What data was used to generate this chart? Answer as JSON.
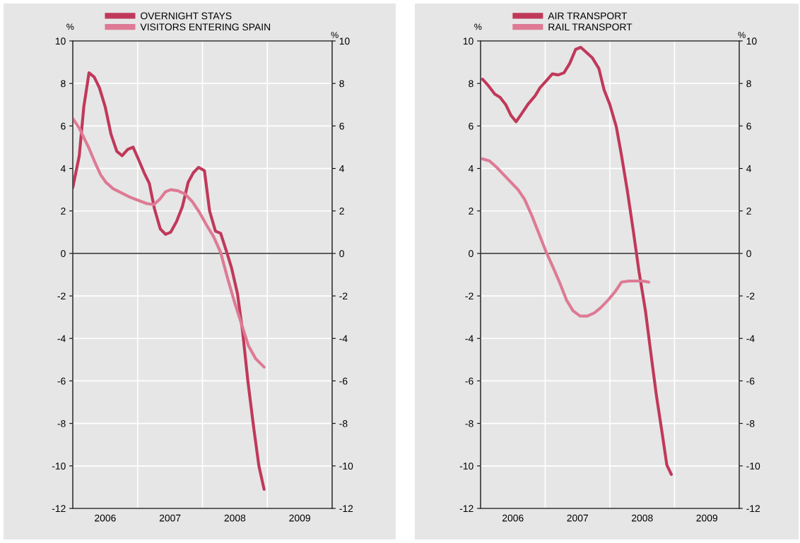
{
  "chart_data": [
    {
      "type": "line",
      "xlim": [
        2006,
        2010
      ],
      "xticks": [
        {
          "value": 2006.5,
          "label": "2006"
        },
        {
          "value": 2007,
          "label": null
        },
        {
          "value": 2007.5,
          "label": "2007"
        },
        {
          "value": 2008,
          "label": null
        },
        {
          "value": 2008.5,
          "label": "2008"
        },
        {
          "value": 2009,
          "label": null
        },
        {
          "value": 2009.5,
          "label": "2009"
        }
      ],
      "ylim": [
        -12,
        10
      ],
      "yticks": [
        -12,
        -10,
        -8,
        -6,
        -4,
        -2,
        0,
        2,
        4,
        6,
        8,
        10
      ],
      "y2lim": [
        -12,
        10
      ],
      "y2ticks": [
        -12,
        -10,
        -8,
        -6,
        -4,
        -2,
        0,
        2,
        4,
        6,
        8,
        10
      ],
      "ylabel": "%",
      "y2label": "%",
      "grid": true,
      "legend": "top",
      "ref_lines": [
        {
          "axis": "y",
          "value": 0,
          "color": "#000000"
        }
      ],
      "series": [
        {
          "name": "OVERNIGHT STAYS",
          "color": "#c0395a",
          "x": [
            2006.0,
            2006.1,
            2006.17,
            2006.25,
            2006.33,
            2006.41,
            2006.5,
            2006.59,
            2006.68,
            2006.76,
            2006.85,
            2006.93,
            2007.01,
            2007.1,
            2007.18,
            2007.26,
            2007.35,
            2007.43,
            2007.51,
            2007.6,
            2007.69,
            2007.78,
            2007.86,
            2007.94,
            2008.03,
            2008.11,
            2008.2,
            2008.28,
            2008.37,
            2008.45,
            2008.54,
            2008.62,
            2008.7,
            2008.79,
            2008.87,
            2008.95
          ],
          "values": [
            3.1,
            4.6,
            6.9,
            8.5,
            8.3,
            7.8,
            6.9,
            5.6,
            4.8,
            4.6,
            4.9,
            5.0,
            4.45,
            3.8,
            3.3,
            2.1,
            1.15,
            0.9,
            1.0,
            1.5,
            2.2,
            3.35,
            3.8,
            4.05,
            3.9,
            2.0,
            1.05,
            0.95,
            0.1,
            -0.7,
            -1.9,
            -3.7,
            -6.0,
            -8.2,
            -10.0,
            -11.1
          ]
        },
        {
          "name": "VISITORS ENTERING SPAIN",
          "color": "#de7a95",
          "x": [
            2006.0,
            2006.1,
            2006.17,
            2006.25,
            2006.34,
            2006.43,
            2006.51,
            2006.62,
            2006.75,
            2006.88,
            2007.01,
            2007.14,
            2007.25,
            2007.34,
            2007.43,
            2007.51,
            2007.62,
            2007.73,
            2007.84,
            2007.95,
            2008.06,
            2008.17,
            2008.28,
            2008.39,
            2008.5,
            2008.61,
            2008.71,
            2008.82,
            2008.95
          ],
          "values": [
            6.35,
            5.9,
            5.45,
            4.95,
            4.3,
            3.7,
            3.35,
            3.05,
            2.85,
            2.65,
            2.5,
            2.35,
            2.3,
            2.55,
            2.9,
            3.0,
            2.95,
            2.8,
            2.45,
            1.95,
            1.35,
            0.8,
            0.05,
            -1.2,
            -2.35,
            -3.4,
            -4.35,
            -4.95,
            -5.35
          ]
        }
      ]
    },
    {
      "type": "line",
      "xlim": [
        2006,
        2010
      ],
      "xticks": [
        {
          "value": 2006.5,
          "label": "2006"
        },
        {
          "value": 2007,
          "label": null
        },
        {
          "value": 2007.5,
          "label": "2007"
        },
        {
          "value": 2008,
          "label": null
        },
        {
          "value": 2008.5,
          "label": "2008"
        },
        {
          "value": 2009,
          "label": null
        },
        {
          "value": 2009.5,
          "label": "2009"
        }
      ],
      "ylim": [
        -12,
        10
      ],
      "yticks": [
        -12,
        -10,
        -8,
        -6,
        -4,
        -2,
        0,
        2,
        4,
        6,
        8,
        10
      ],
      "y2lim": [
        -12,
        10
      ],
      "y2ticks": [
        -12,
        -10,
        -8,
        -6,
        -4,
        -2,
        0,
        2,
        4,
        6,
        8,
        10
      ],
      "ylabel": "%",
      "y2label": "%",
      "grid": true,
      "legend": "top",
      "ref_lines": [
        {
          "axis": "y",
          "value": 0,
          "color": "#000000"
        }
      ],
      "series": [
        {
          "name": "AIR TRANSPORT",
          "color": "#c0395a",
          "x": [
            2006.03,
            2006.12,
            2006.22,
            2006.3,
            2006.39,
            2006.47,
            2006.55,
            2006.64,
            2006.74,
            2006.84,
            2006.92,
            2007.01,
            2007.11,
            2007.2,
            2007.29,
            2007.38,
            2007.47,
            2007.55,
            2007.64,
            2007.73,
            2007.83,
            2007.91,
            2008.0,
            2008.1,
            2008.18,
            2008.27,
            2008.36,
            2008.45,
            2008.55,
            2008.64,
            2008.72,
            2008.81,
            2008.88,
            2008.95
          ],
          "values": [
            8.2,
            7.9,
            7.5,
            7.35,
            7.0,
            6.5,
            6.2,
            6.6,
            7.05,
            7.4,
            7.8,
            8.1,
            8.45,
            8.4,
            8.5,
            8.95,
            9.6,
            9.7,
            9.45,
            9.2,
            8.7,
            7.7,
            7.0,
            5.95,
            4.6,
            2.95,
            1.1,
            -0.85,
            -2.7,
            -4.85,
            -6.7,
            -8.5,
            -9.95,
            -10.4
          ]
        },
        {
          "name": "RAIL TRANSPORT",
          "color": "#de7a95",
          "x": [
            2006.03,
            2006.14,
            2006.25,
            2006.36,
            2006.47,
            2006.58,
            2006.68,
            2006.79,
            2006.9,
            2007.01,
            2007.12,
            2007.22,
            2007.33,
            2007.43,
            2007.54,
            2007.65,
            2007.76,
            2007.86,
            2007.97,
            2008.08,
            2008.18,
            2008.29,
            2008.4,
            2008.51,
            2008.6
          ],
          "values": [
            4.45,
            4.35,
            4.05,
            3.7,
            3.35,
            3.0,
            2.55,
            1.8,
            0.95,
            0.1,
            -0.65,
            -1.35,
            -2.2,
            -2.7,
            -2.95,
            -2.95,
            -2.8,
            -2.55,
            -2.2,
            -1.8,
            -1.35,
            -1.3,
            -1.3,
            -1.3,
            -1.35
          ]
        }
      ]
    }
  ]
}
